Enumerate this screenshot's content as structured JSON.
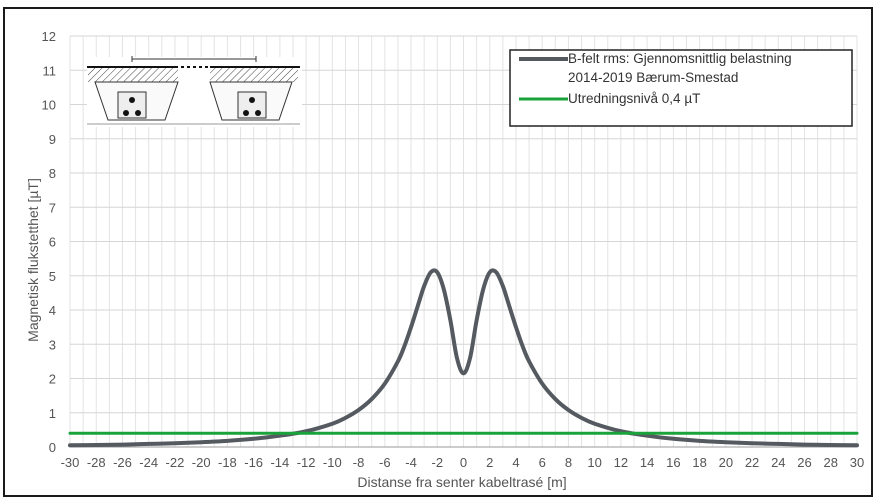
{
  "chart_data": {
    "type": "line",
    "xlabel": "Distanse fra senter kabeltrasé [m]",
    "ylabel": "Magnetisk flukstetthet [µT]",
    "xlim": [
      -30,
      30
    ],
    "ylim": [
      0,
      12
    ],
    "x_ticks": [
      -30,
      -28,
      -26,
      -24,
      -22,
      -20,
      -18,
      -16,
      -14,
      -12,
      -10,
      -8,
      -6,
      -4,
      -2,
      0,
      2,
      4,
      6,
      8,
      10,
      12,
      14,
      16,
      18,
      20,
      22,
      24,
      26,
      28,
      30
    ],
    "y_ticks": [
      0,
      1,
      2,
      3,
      4,
      5,
      6,
      7,
      8,
      9,
      10,
      11,
      12
    ],
    "grid": true,
    "legend_position": "top-right",
    "series": [
      {
        "name": "B-felt rms: Gjennomsnittlig belastning 2014-2019 Bærum-Smestad",
        "legend_lines": [
          "B-felt rms: Gjennomsnittlig belastning",
          "2014-2019 Bærum-Smestad"
        ],
        "color": "#555a60",
        "x": [
          -30,
          -28,
          -26,
          -24,
          -22,
          -20,
          -18,
          -16,
          -14,
          -12,
          -10,
          -9,
          -8,
          -7,
          -6,
          -5,
          -4.5,
          -4,
          -3.5,
          -3,
          -2.5,
          -2,
          -1.5,
          -1,
          -0.5,
          0,
          0.5,
          1,
          1.5,
          2,
          2.5,
          3,
          3.5,
          4,
          4.5,
          5,
          6,
          7,
          8,
          9,
          10,
          12,
          14,
          16,
          18,
          20,
          22,
          24,
          26,
          28,
          30
        ],
        "y": [
          0.05,
          0.06,
          0.07,
          0.09,
          0.11,
          0.14,
          0.18,
          0.24,
          0.33,
          0.46,
          0.68,
          0.85,
          1.08,
          1.4,
          1.85,
          2.5,
          2.95,
          3.5,
          4.1,
          4.7,
          5.1,
          5.1,
          4.6,
          3.7,
          2.6,
          2.15,
          2.6,
          3.7,
          4.6,
          5.1,
          5.1,
          4.7,
          4.1,
          3.5,
          2.95,
          2.5,
          1.85,
          1.4,
          1.08,
          0.85,
          0.68,
          0.46,
          0.33,
          0.24,
          0.18,
          0.14,
          0.11,
          0.09,
          0.07,
          0.06,
          0.05
        ]
      },
      {
        "name": "Utredningsnivå 0,4 µT",
        "legend_lines": [
          "Utredningsnivå  0,4 µT"
        ],
        "color": "#1aa33a",
        "x": [
          -30,
          30
        ],
        "y": [
          0.4,
          0.4
        ]
      }
    ]
  }
}
